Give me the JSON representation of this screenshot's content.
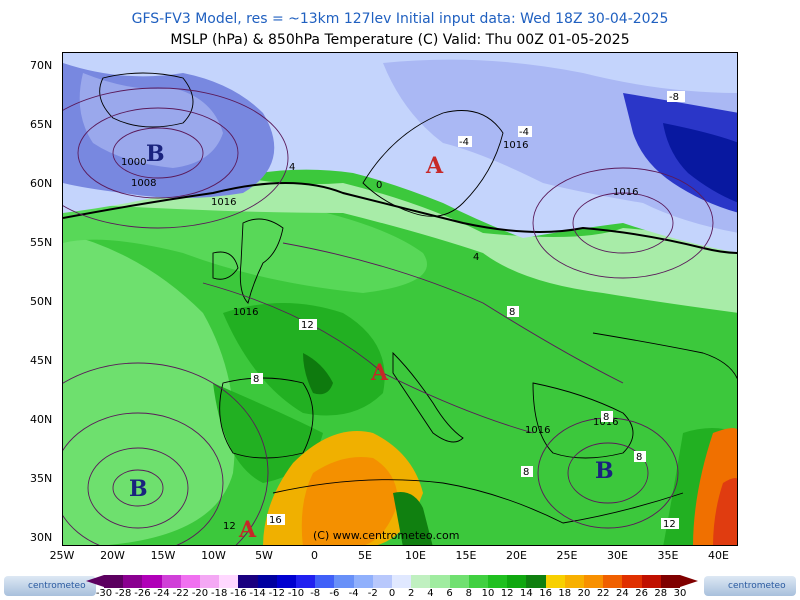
{
  "header": {
    "line1": "GFS-FV3 Model, res = ~13km 127lev    Initial input data: Wed 18Z 30-04-2025",
    "line2": "MSLP (hPa) & 850hPa Temperature (C)   Valid: Thu 00Z 01-05-2025"
  },
  "axes": {
    "lat_labels": [
      "70N",
      "65N",
      "60N",
      "55N",
      "50N",
      "45N",
      "40N",
      "35N",
      "30N"
    ],
    "lon_labels": [
      "25W",
      "20W",
      "15W",
      "10W",
      "5W",
      "0",
      "5E",
      "10E",
      "15E",
      "20E",
      "25E",
      "30E",
      "35E",
      "40E"
    ]
  },
  "map": {
    "copyright": "(C) www.centrometeo.com",
    "pressure_centers": [
      {
        "letter": "B",
        "meaning": "low",
        "color": "#1a237e"
      },
      {
        "letter": "B",
        "meaning": "low",
        "color": "#1a237e"
      },
      {
        "letter": "B",
        "meaning": "low",
        "color": "#1a237e"
      },
      {
        "letter": "A",
        "meaning": "high",
        "color": "#c62828"
      },
      {
        "letter": "A",
        "meaning": "high",
        "color": "#c62828"
      },
      {
        "letter": "A",
        "meaning": "high",
        "color": "#c62828"
      }
    ],
    "isobar_labels": [
      "1000",
      "1008",
      "1016",
      "1016",
      "1016",
      "1016",
      "1016",
      "1016"
    ],
    "temp_labels": [
      "-8",
      "-4",
      "-4",
      "0",
      "4",
      "4",
      "8",
      "8",
      "8",
      "8",
      "8",
      "12",
      "12",
      "16",
      "12"
    ]
  },
  "colorbar": {
    "labels": [
      "-30",
      "-28",
      "-26",
      "-24",
      "-22",
      "-20",
      "-18",
      "-16",
      "-14",
      "-12",
      "-10",
      "-8",
      "-6",
      "-4",
      "-2",
      "0",
      "2",
      "4",
      "6",
      "8",
      "10",
      "12",
      "14",
      "16",
      "18",
      "20",
      "22",
      "24",
      "26",
      "28",
      "30"
    ],
    "colors": [
      "#5c0060",
      "#8a0090",
      "#b000b8",
      "#d040d8",
      "#f070f0",
      "#f4a8f4",
      "#ffd8ff",
      "#1a0080",
      "#0000a0",
      "#0000d0",
      "#2020f0",
      "#4060f8",
      "#6890f8",
      "#90b0fc",
      "#b8c8fc",
      "#e0e8ff",
      "#c0f0c0",
      "#a0eca0",
      "#70e070",
      "#40d040",
      "#20c020",
      "#10a810",
      "#108010",
      "#f8d000",
      "#f8b000",
      "#f89000",
      "#f06000",
      "#e03000",
      "#c01000",
      "#800000"
    ]
  },
  "logos": {
    "left": "centrometeo",
    "right": "centrometeo"
  },
  "colors": {
    "title_blue": "#2060c0",
    "map_green": "#2fcf2f",
    "cold_blue": "#4646d8"
  }
}
